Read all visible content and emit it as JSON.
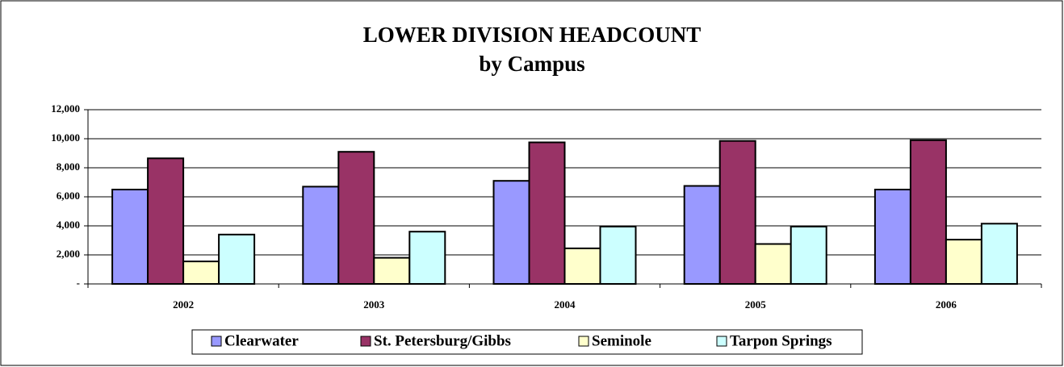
{
  "chart_data": {
    "type": "bar",
    "title": "LOWER DIVISION HEADCOUNT",
    "subtitle": "by Campus",
    "categories": [
      "2002",
      "2003",
      "2004",
      "2005",
      "2006"
    ],
    "series": [
      {
        "name": "Clearwater",
        "color": "#9999ff",
        "values": [
          6500,
          6700,
          7100,
          6750,
          6500
        ]
      },
      {
        "name": "St. Petersburg/Gibbs",
        "color": "#993366",
        "values": [
          8650,
          9100,
          9750,
          9850,
          9900
        ]
      },
      {
        "name": "Seminole",
        "color": "#ffffcc",
        "values": [
          1550,
          1800,
          2450,
          2750,
          3050
        ]
      },
      {
        "name": "Tarpon Springs",
        "color": "#ccffff",
        "values": [
          3400,
          3600,
          3950,
          3950,
          4150
        ]
      }
    ],
    "ylim": [
      0,
      12000
    ],
    "yticks": [
      {
        "value": 0,
        "label": "-"
      },
      {
        "value": 2000,
        "label": "2,000"
      },
      {
        "value": 4000,
        "label": "4,000"
      },
      {
        "value": 6000,
        "label": "6,000"
      },
      {
        "value": 8000,
        "label": "8,000"
      },
      {
        "value": 10000,
        "label": "10,000"
      },
      {
        "value": 12000,
        "label": "12,000"
      }
    ],
    "grid": true,
    "legend": "bottom"
  }
}
